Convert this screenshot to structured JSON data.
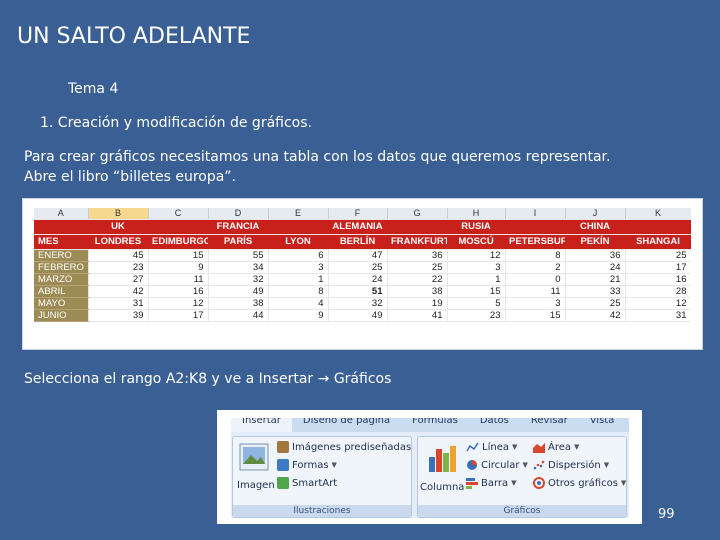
{
  "slide": {
    "title": "UN SALTO ADELANTE",
    "tema": "Tema 4",
    "heading": "1. Creación y modificación de gráficos.",
    "body_line1": "Para crear gráficos necesitamos una tabla con los datos que queremos representar.",
    "body_line2": "Abre el libro “billetes europa”.",
    "instruction_prefix": "Selecciona el rango A2:K8 y ve a Insertar",
    "instruction_arrow": "→",
    "instruction_suffix": "Gráficos",
    "page_number": "99"
  },
  "sheet": {
    "columns": [
      "A",
      "B",
      "C",
      "D",
      "E",
      "F",
      "G",
      "H",
      "I",
      "J",
      "K"
    ],
    "countries": [
      "",
      "UK",
      "",
      "FRANCIA",
      "",
      "ALEMANIA",
      "",
      "RUSIA",
      "",
      "CHINA",
      ""
    ],
    "cities": [
      "MES",
      "LONDRES",
      "EDIMBURGO",
      "PARÍS",
      "LYON",
      "BERLÍN",
      "FRANKFURT",
      "MOSCÚ",
      "PETERSBURG",
      "PEKÍN",
      "SHANGAI"
    ],
    "rows": [
      {
        "month": "ENERO",
        "values": [
          "45",
          "15",
          "55",
          "6",
          "47",
          "36",
          "12",
          "8",
          "36",
          "25"
        ]
      },
      {
        "month": "FEBRERO",
        "values": [
          "23",
          "9",
          "34",
          "3",
          "25",
          "25",
          "3",
          "2",
          "24",
          "17"
        ]
      },
      {
        "month": "MARZO",
        "values": [
          "27",
          "11",
          "32",
          "1",
          "24",
          "22",
          "1",
          "0",
          "21",
          "16"
        ]
      },
      {
        "month": "ABRIL",
        "values": [
          "42",
          "16",
          "49",
          "8",
          "51",
          "38",
          "15",
          "11",
          "33",
          "28"
        ]
      },
      {
        "month": "MAYO",
        "values": [
          "31",
          "12",
          "38",
          "4",
          "32",
          "19",
          "5",
          "3",
          "25",
          "12"
        ]
      },
      {
        "month": "JUNIO",
        "values": [
          "39",
          "17",
          "44",
          "9",
          "49",
          "41",
          "23",
          "15",
          "42",
          "31"
        ]
      }
    ]
  },
  "ribbon": {
    "tabs": [
      "Insertar",
      "Diseño de página",
      "Fórmulas",
      "Datos",
      "Revisar",
      "Vista"
    ],
    "illustrations": {
      "imagen": "Imagen",
      "clipart": "Imágenes prediseñadas",
      "formas": "Formas",
      "smartart": "SmartArt",
      "label": "Ilustraciones"
    },
    "charts": {
      "columna": "Columna",
      "linea": "Línea",
      "area": "Área",
      "circular": "Circular",
      "dispersion": "Dispersión",
      "barra": "Barra",
      "otros": "Otros gráficos",
      "label": "Gráficos"
    },
    "colors": {
      "accent_blue": "#3a5f95",
      "header_red": "#c8211c",
      "month_olive": "#9d8b55"
    }
  }
}
